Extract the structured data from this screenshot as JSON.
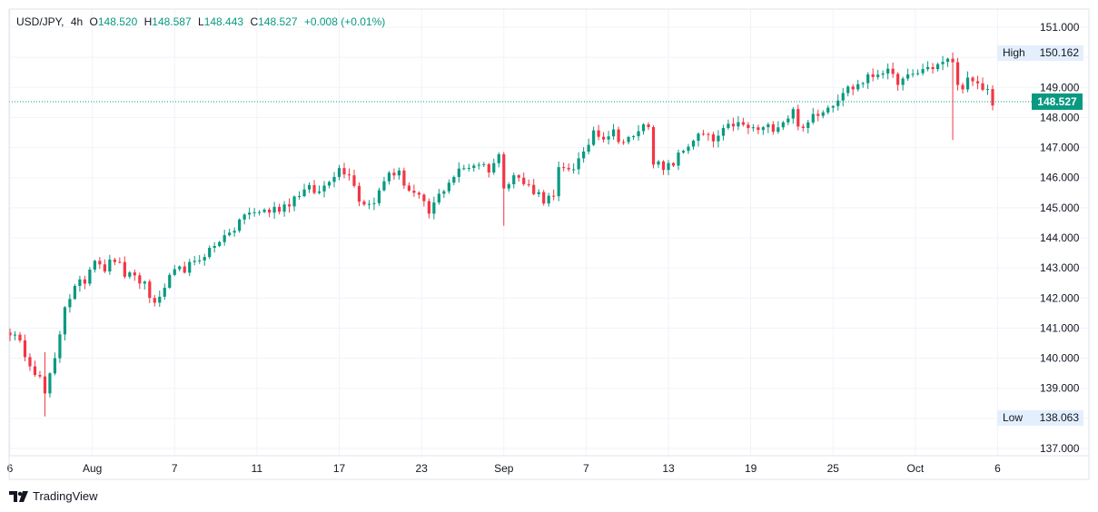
{
  "header": {
    "symbol": "USD/JPY",
    "interval": "4h",
    "open_label": "O",
    "open": "148.520",
    "high_label": "H",
    "high": "148.587",
    "low_label": "L",
    "low": "148.443",
    "close_label": "C",
    "close": "148.527",
    "change": "+0.008 (+0.01%)"
  },
  "brand": {
    "name": "TradingView"
  },
  "colors": {
    "up": "#089981",
    "down": "#f23645",
    "grid": "#f0f3fa",
    "axis_text": "#131722",
    "badge": "#e3effd",
    "last_price": "#089981"
  },
  "chart_data": {
    "type": "candlestick",
    "title": "",
    "xlabel": "",
    "ylabel": "",
    "ylim": [
      136.7,
      151.5
    ],
    "y_ticks": [
      "137.000",
      "138.000",
      "139.000",
      "140.000",
      "141.000",
      "142.000",
      "143.000",
      "144.000",
      "145.000",
      "146.000",
      "147.000",
      "148.000",
      "149.000",
      "150.000",
      "151.000"
    ],
    "x_ticks": [
      {
        "label": "6",
        "x": 0
      },
      {
        "label": "Aug",
        "x": 16.5
      },
      {
        "label": "7",
        "x": 33
      },
      {
        "label": "11",
        "x": 49.5
      },
      {
        "label": "17",
        "x": 66
      },
      {
        "label": "23",
        "x": 82.5
      },
      {
        "label": "Sep",
        "x": 99
      },
      {
        "label": "7",
        "x": 115.5
      },
      {
        "label": "13",
        "x": 132
      },
      {
        "label": "19",
        "x": 148.5
      },
      {
        "label": "25",
        "x": 165
      },
      {
        "label": "Oct",
        "x": 181.5
      },
      {
        "label": "6",
        "x": 198
      }
    ],
    "high_marker": {
      "label": "High",
      "value": "150.162"
    },
    "low_marker": {
      "label": "Low",
      "value": "138.063"
    },
    "last_price": {
      "value": "148.527",
      "y": 148.527
    },
    "keypoints": [
      [
        0,
        140.9
      ],
      [
        3,
        140.2
      ],
      [
        6,
        139.3
      ],
      [
        7,
        138.8
      ],
      [
        9,
        139.9
      ],
      [
        11,
        141.8
      ],
      [
        13,
        142.3
      ],
      [
        15,
        142.6
      ],
      [
        17,
        143.4
      ],
      [
        19,
        143.0
      ],
      [
        21,
        143.3
      ],
      [
        23,
        142.8
      ],
      [
        25,
        142.6
      ],
      [
        27,
        142.5
      ],
      [
        28,
        142.0
      ],
      [
        30,
        141.9
      ],
      [
        31,
        142.4
      ],
      [
        33,
        142.8
      ],
      [
        35,
        143.0
      ],
      [
        37,
        143.1
      ],
      [
        39,
        143.5
      ],
      [
        41,
        143.7
      ],
      [
        43,
        144.2
      ],
      [
        44,
        144.0
      ],
      [
        46,
        144.6
      ],
      [
        48,
        144.8
      ],
      [
        50,
        144.9
      ],
      [
        52,
        144.9
      ],
      [
        54,
        145.0
      ],
      [
        56,
        145.2
      ],
      [
        58,
        145.5
      ],
      [
        60,
        145.6
      ],
      [
        62,
        145.5
      ],
      [
        64,
        146.0
      ],
      [
        66,
        146.3
      ],
      [
        68,
        146.2
      ],
      [
        70,
        145.3
      ],
      [
        72,
        145.1
      ],
      [
        74,
        145.5
      ],
      [
        76,
        146.2
      ],
      [
        78,
        146.1
      ],
      [
        80,
        145.6
      ],
      [
        82,
        145.3
      ],
      [
        84,
        144.8
      ],
      [
        86,
        145.4
      ],
      [
        88,
        145.9
      ],
      [
        90,
        146.2
      ],
      [
        92,
        146.4
      ],
      [
        94,
        146.5
      ],
      [
        96,
        146.3
      ],
      [
        98,
        146.7
      ],
      [
        99,
        145.8
      ],
      [
        101,
        146.1
      ],
      [
        103,
        145.8
      ],
      [
        105,
        145.6
      ],
      [
        107,
        145.3
      ],
      [
        109,
        145.3
      ],
      [
        110,
        146.2
      ],
      [
        113,
        146.4
      ],
      [
        115,
        146.7
      ],
      [
        117,
        147.6
      ],
      [
        119,
        147.4
      ],
      [
        121,
        147.5
      ],
      [
        123,
        147.2
      ],
      [
        125,
        147.3
      ],
      [
        126,
        147.6
      ],
      [
        128,
        147.8
      ],
      [
        129,
        146.6
      ],
      [
        131,
        146.2
      ],
      [
        133,
        146.5
      ],
      [
        135,
        146.9
      ],
      [
        137,
        147.3
      ],
      [
        139,
        147.4
      ],
      [
        141,
        147.2
      ],
      [
        143,
        147.5
      ],
      [
        145,
        147.8
      ],
      [
        147,
        147.7
      ],
      [
        149,
        147.6
      ],
      [
        151,
        147.6
      ],
      [
        153,
        147.7
      ],
      [
        155,
        147.9
      ],
      [
        157,
        148.2
      ],
      [
        159,
        147.5
      ],
      [
        161,
        148.1
      ],
      [
        163,
        148.3
      ],
      [
        165,
        148.5
      ],
      [
        167,
        148.9
      ],
      [
        169,
        149.0
      ],
      [
        171,
        149.2
      ],
      [
        173,
        149.4
      ],
      [
        175,
        149.6
      ],
      [
        177,
        149.3
      ],
      [
        179,
        149.2
      ],
      [
        181,
        149.4
      ],
      [
        183,
        149.6
      ],
      [
        185,
        149.7
      ],
      [
        187,
        149.8
      ],
      [
        189,
        149.9
      ],
      [
        190,
        149.0
      ],
      [
        192,
        149.2
      ],
      [
        194,
        149.0
      ],
      [
        196,
        148.9
      ],
      [
        197,
        148.52
      ]
    ],
    "shocks": [
      {
        "x": 99,
        "low": 144.4,
        "high": 146.0
      },
      {
        "x": 189,
        "low": 147.25,
        "high": 150.162
      },
      {
        "x": 7,
        "low": 138.063,
        "high": 140.2
      }
    ]
  }
}
